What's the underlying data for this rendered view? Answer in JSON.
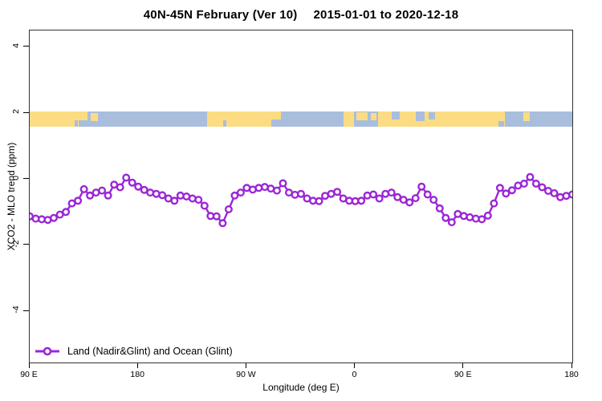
{
  "title": {
    "region_period": "40N-45N February (Ver 10)",
    "date_range": "2015-01-01 to 2020-12-18"
  },
  "axes": {
    "x_label": "Longitude (deg E)",
    "y_label": "XCO2 - MLO trend (ppm)",
    "x_tick_labels": [
      "90 E",
      "180",
      "90 W",
      "0",
      "90 E",
      "180"
    ],
    "y_tick_labels": [
      "4",
      "2",
      "0",
      "-2",
      "-4"
    ]
  },
  "legend": {
    "label": "Land (Nadir&Glint) and Ocean (Glint)"
  },
  "chart_data": {
    "type": "line",
    "title": "40N-45N February (Ver 10)  2015-01-01 to 2020-12-18",
    "xlabel": "Longitude (deg E)",
    "ylabel": "XCO2 - MLO trend (ppm)",
    "xlim": [
      90,
      540
    ],
    "ylim": [
      -5.55,
      4.51
    ],
    "x_tick_values": [
      90,
      180,
      270,
      360,
      450,
      540
    ],
    "y_tick_values": [
      4,
      2,
      0,
      -2,
      -4
    ],
    "grid": false,
    "legend_position": "bottom-left-inside",
    "x": {
      "start": 90,
      "step": 5,
      "count": 91
    },
    "series": [
      {
        "name": "Land (Nadir&Glint) and Ocean (Glint)",
        "color": "#9b26d6",
        "marker": "open-circle",
        "values": [
          -1.12,
          -1.19,
          -1.21,
          -1.23,
          -1.17,
          -1.07,
          -0.99,
          -0.73,
          -0.65,
          -0.3,
          -0.49,
          -0.4,
          -0.34,
          -0.49,
          -0.16,
          -0.24,
          0.05,
          -0.1,
          -0.22,
          -0.32,
          -0.4,
          -0.44,
          -0.48,
          -0.58,
          -0.65,
          -0.49,
          -0.52,
          -0.58,
          -0.62,
          -0.8,
          -1.11,
          -1.12,
          -1.33,
          -0.91,
          -0.49,
          -0.4,
          -0.26,
          -0.31,
          -0.26,
          -0.23,
          -0.28,
          -0.34,
          -0.12,
          -0.4,
          -0.47,
          -0.44,
          -0.58,
          -0.65,
          -0.66,
          -0.5,
          -0.44,
          -0.38,
          -0.58,
          -0.65,
          -0.66,
          -0.65,
          -0.49,
          -0.46,
          -0.58,
          -0.44,
          -0.4,
          -0.54,
          -0.62,
          -0.7,
          -0.57,
          -0.22,
          -0.46,
          -0.62,
          -0.88,
          -1.17,
          -1.3,
          -1.05,
          -1.11,
          -1.15,
          -1.19,
          -1.21,
          -1.1,
          -0.73,
          -0.26,
          -0.43,
          -0.33,
          -0.19,
          -0.13,
          0.07,
          -0.13,
          -0.24,
          -0.35,
          -0.42,
          -0.54,
          -0.5,
          -0.46
        ]
      }
    ],
    "band": {
      "meaning": "land-ocean strip along 40N-45N",
      "top_value": 2.05,
      "bottom_value": 1.59,
      "ocean_color": "#a9bedd",
      "land_color": "#fbdc83",
      "patches": [
        {
          "kind": "land",
          "f0": 0.0,
          "f1": 0.0895,
          "t": 0.0,
          "h": 1.0
        },
        {
          "kind": "land",
          "f0": 0.0888,
          "f1": 0.1065,
          "t": 0.0,
          "h": 0.55
        },
        {
          "kind": "land",
          "f0": 0.1124,
          "f1": 0.1257,
          "t": 0.08,
          "h": 0.55
        },
        {
          "kind": "land",
          "f0": 0.327,
          "f1": 0.4452,
          "t": 0.0,
          "h": 1.0
        },
        {
          "kind": "land",
          "f0": 0.4452,
          "f1": 0.463,
          "t": 0.0,
          "h": 0.5
        },
        {
          "kind": "land",
          "f0": 0.5784,
          "f1": 0.5976,
          "t": 0.0,
          "h": 1.0
        },
        {
          "kind": "land",
          "f0": 0.602,
          "f1": 0.6227,
          "t": 0.05,
          "h": 0.5
        },
        {
          "kind": "land",
          "f0": 0.6287,
          "f1": 0.639,
          "t": 0.1,
          "h": 0.45
        },
        {
          "kind": "land",
          "f0": 0.642,
          "f1": 0.8757,
          "t": 0.0,
          "h": 1.0
        },
        {
          "kind": "land",
          "f0": 0.9098,
          "f1": 0.9216,
          "t": 0.05,
          "h": 0.55
        },
        {
          "kind": "water",
          "f0": 0.0835,
          "f1": 0.0895,
          "t": 0.55,
          "h": 0.45
        },
        {
          "kind": "water",
          "f0": 0.3565,
          "f1": 0.3624,
          "t": 0.55,
          "h": 0.45
        },
        {
          "kind": "water",
          "f0": 0.667,
          "f1": 0.682,
          "t": 0.0,
          "h": 0.5
        },
        {
          "kind": "water",
          "f0": 0.7115,
          "f1": 0.7278,
          "t": 0.0,
          "h": 0.6
        },
        {
          "kind": "water",
          "f0": 0.7352,
          "f1": 0.747,
          "t": 0.05,
          "h": 0.45
        },
        {
          "kind": "water",
          "f0": 0.8639,
          "f1": 0.8743,
          "t": 0.6,
          "h": 0.4
        }
      ]
    }
  }
}
